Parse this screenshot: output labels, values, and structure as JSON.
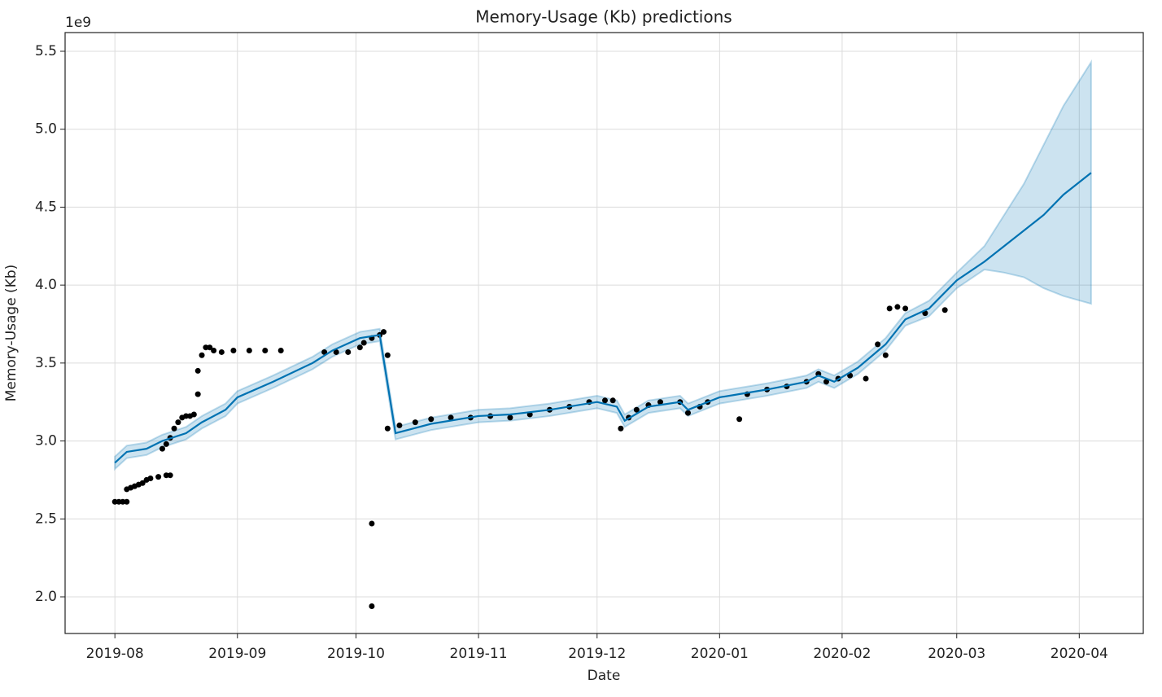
{
  "chart_data": {
    "type": "line",
    "title": "Memory-Usage (Kb) predictions",
    "xlabel": "Date",
    "ylabel": "Memory-Usage (Kb)",
    "y_offset_label": "1e9",
    "grid": true,
    "xlim": [
      -12.6,
      260.2
    ],
    "xticks": [
      {
        "value": 0,
        "label": "2019-08"
      },
      {
        "value": 31,
        "label": "2019-09"
      },
      {
        "value": 61,
        "label": "2019-10"
      },
      {
        "value": 92,
        "label": "2019-11"
      },
      {
        "value": 122,
        "label": "2019-12"
      },
      {
        "value": 153,
        "label": "2020-01"
      },
      {
        "value": 184,
        "label": "2020-02"
      },
      {
        "value": 213,
        "label": "2020-03"
      },
      {
        "value": 244,
        "label": "2020-04"
      }
    ],
    "ylim": [
      1.765,
      5.62
    ],
    "yticks": [
      {
        "value": 2,
        "label": "2.0"
      },
      2.5,
      {
        "value": 3,
        "label": "3.0"
      },
      3.5,
      {
        "value": 4,
        "label": "4.0"
      },
      4.5,
      {
        "value": 5,
        "label": "5.0"
      },
      5.5
    ],
    "observed": {
      "color": "#000000",
      "x": [
        0,
        1,
        2,
        3,
        3,
        4,
        5,
        6,
        7,
        8,
        9,
        11,
        13,
        14,
        12,
        13,
        14,
        15,
        16,
        17,
        18,
        19,
        20,
        21,
        21,
        22,
        23,
        24,
        25,
        27,
        30,
        34,
        38,
        42,
        53,
        56,
        59,
        62,
        63,
        65,
        67,
        68,
        69,
        65,
        65,
        69,
        72,
        76,
        80,
        85,
        90,
        95,
        100,
        105,
        110,
        115,
        120,
        124,
        126,
        128,
        130,
        132,
        135,
        138,
        143,
        145,
        148,
        150,
        158,
        160,
        165,
        170,
        175,
        178,
        180,
        183,
        186,
        190,
        193,
        195,
        196,
        198,
        200,
        205,
        210
      ],
      "values": [
        2.61,
        2.61,
        2.61,
        2.61,
        2.69,
        2.7,
        2.71,
        2.72,
        2.73,
        2.75,
        2.76,
        2.77,
        2.78,
        2.78,
        2.95,
        2.98,
        3.02,
        3.08,
        3.12,
        3.15,
        3.16,
        3.16,
        3.17,
        3.3,
        3.45,
        3.55,
        3.6,
        3.6,
        3.58,
        3.57,
        3.58,
        3.58,
        3.58,
        3.58,
        3.57,
        3.57,
        3.57,
        3.6,
        3.63,
        3.66,
        3.68,
        3.7,
        3.55,
        2.47,
        1.94,
        3.08,
        3.1,
        3.12,
        3.14,
        3.15,
        3.15,
        3.16,
        3.15,
        3.17,
        3.2,
        3.22,
        3.25,
        3.26,
        3.26,
        3.08,
        3.15,
        3.2,
        3.23,
        3.25,
        3.25,
        3.18,
        3.22,
        3.25,
        3.14,
        3.3,
        3.33,
        3.35,
        3.38,
        3.43,
        3.38,
        3.4,
        3.42,
        3.4,
        3.62,
        3.55,
        3.85,
        3.86,
        3.85,
        3.82,
        3.84
      ]
    },
    "forecast": {
      "color": "#0072B2",
      "band_color": "#0072B2",
      "x": [
        0,
        3,
        8,
        12,
        18,
        22,
        28,
        31,
        40,
        50,
        55,
        62,
        67,
        71,
        80,
        92,
        100,
        110,
        122,
        127,
        129,
        135,
        143,
        145,
        153,
        165,
        175,
        178,
        182,
        188,
        195,
        200,
        206,
        213,
        220,
        225,
        230,
        235,
        240,
        247
      ],
      "values": [
        2.86,
        2.93,
        2.95,
        3.0,
        3.05,
        3.12,
        3.2,
        3.28,
        3.38,
        3.5,
        3.58,
        3.66,
        3.68,
        3.05,
        3.11,
        3.16,
        3.17,
        3.2,
        3.25,
        3.22,
        3.13,
        3.22,
        3.25,
        3.2,
        3.28,
        3.33,
        3.38,
        3.42,
        3.38,
        3.47,
        3.62,
        3.78,
        3.85,
        4.03,
        4.15,
        4.25,
        4.35,
        4.45,
        4.58,
        4.72
      ],
      "upper": [
        2.9,
        2.97,
        2.99,
        3.04,
        3.09,
        3.16,
        3.24,
        3.32,
        3.42,
        3.54,
        3.62,
        3.7,
        3.72,
        3.09,
        3.15,
        3.2,
        3.21,
        3.24,
        3.29,
        3.26,
        3.17,
        3.26,
        3.29,
        3.24,
        3.32,
        3.37,
        3.42,
        3.46,
        3.42,
        3.51,
        3.66,
        3.82,
        3.9,
        4.08,
        4.25,
        4.45,
        4.65,
        4.9,
        5.15,
        5.43
      ],
      "lower": [
        2.82,
        2.89,
        2.91,
        2.96,
        3.01,
        3.08,
        3.16,
        3.24,
        3.34,
        3.46,
        3.54,
        3.62,
        3.64,
        3.01,
        3.07,
        3.12,
        3.13,
        3.16,
        3.21,
        3.18,
        3.09,
        3.18,
        3.21,
        3.16,
        3.24,
        3.29,
        3.34,
        3.38,
        3.34,
        3.43,
        3.58,
        3.74,
        3.8,
        3.98,
        4.1,
        4.08,
        4.05,
        3.98,
        3.93,
        3.88
      ]
    }
  }
}
